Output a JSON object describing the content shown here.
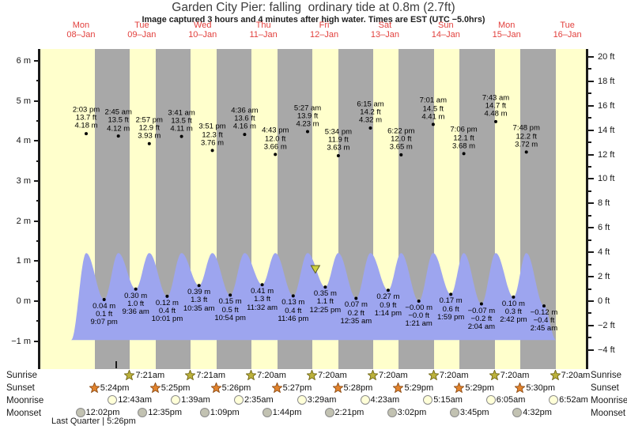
{
  "title": "Garden City Pier: falling  ordinary tide at 0.8m (2.7ft)",
  "subtitle": "Image captured 3 hours and 4 minutes after high water. Times are EST (UTC −5.0hrs)",
  "chart_data": {
    "type": "area",
    "title": "Garden City Pier: falling ordinary tide at 0.8m (2.7ft)",
    "x_axis": {
      "days": [
        {
          "name": "Mon",
          "date": "08–Jan"
        },
        {
          "name": "Tue",
          "date": "09–Jan"
        },
        {
          "name": "Wed",
          "date": "10–Jan"
        },
        {
          "name": "Thu",
          "date": "11–Jan"
        },
        {
          "name": "Fri",
          "date": "12–Jan"
        },
        {
          "name": "Sat",
          "date": "13–Jan"
        },
        {
          "name": "Sun",
          "date": "14–Jan"
        },
        {
          "name": "Mon",
          "date": "15–Jan"
        },
        {
          "name": "Tue",
          "date": "16–Jan"
        }
      ]
    },
    "y_axis_left": {
      "unit": "m",
      "major_ticks": [
        6,
        5,
        4,
        3,
        2,
        1,
        0,
        -1
      ],
      "minor_ticks": [
        5.5,
        4.5,
        3.5,
        2.5,
        1.5,
        0.5,
        -0.5
      ],
      "range": [
        -1.7,
        6.3
      ]
    },
    "y_axis_right": {
      "unit": "ft",
      "major_ticks": [
        20,
        18,
        16,
        14,
        12,
        10,
        8,
        6,
        4,
        2,
        0,
        -2,
        -4
      ],
      "minor_ticks": [
        19,
        17,
        15,
        13,
        11,
        9,
        7,
        5,
        3,
        1,
        -1,
        -3
      ]
    },
    "tide_events": [
      {
        "type": "high",
        "time": "2:03 pm",
        "ft": "13.7 ft",
        "m": "4.18 m",
        "t": 14.05,
        "height_m": 4.18
      },
      {
        "type": "low",
        "time": "9:07 pm",
        "ft": "0.1 ft",
        "m": "0.04 m",
        "t": 21.117,
        "height_m": 0.04
      },
      {
        "type": "high",
        "time": "2:45 am",
        "ft": "13.5 ft",
        "m": "4.12 m",
        "t": 26.75,
        "height_m": 4.12
      },
      {
        "type": "low",
        "time": "9:36 am",
        "ft": "1.0 ft",
        "m": "0.30 m",
        "t": 33.6,
        "height_m": 0.3
      },
      {
        "type": "high",
        "time": "2:57 pm",
        "ft": "12.9 ft",
        "m": "3.93 m",
        "t": 38.95,
        "height_m": 3.93
      },
      {
        "type": "low",
        "time": "10:01 pm",
        "ft": "0.4 ft",
        "m": "0.12 m",
        "t": 46.017,
        "height_m": 0.12
      },
      {
        "type": "high",
        "time": "3:41 am",
        "ft": "13.5 ft",
        "m": "4.11 m",
        "t": 51.683,
        "height_m": 4.11
      },
      {
        "type": "low",
        "time": "10:35 am",
        "ft": "1.3 ft",
        "m": "0.39 m",
        "t": 58.583,
        "height_m": 0.39
      },
      {
        "type": "high",
        "time": "3:51 pm",
        "ft": "12.3 ft",
        "m": "3.76 m",
        "t": 63.85,
        "height_m": 3.76
      },
      {
        "type": "low",
        "time": "10:54 pm",
        "ft": "0.5 ft",
        "m": "0.15 m",
        "t": 70.9,
        "height_m": 0.15
      },
      {
        "type": "high",
        "time": "4:36 am",
        "ft": "13.6 ft",
        "m": "4.16 m",
        "t": 76.6,
        "height_m": 4.16
      },
      {
        "type": "low",
        "time": "11:32 am",
        "ft": "1.3 ft",
        "m": "0.41 m",
        "t": 83.533,
        "height_m": 0.41
      },
      {
        "type": "high",
        "time": "4:43 pm",
        "ft": "12.0 ft",
        "m": "3.66 m",
        "t": 88.717,
        "height_m": 3.66
      },
      {
        "type": "low",
        "time": "11:46 pm",
        "ft": "0.4 ft",
        "m": "0.13 m",
        "t": 95.767,
        "height_m": 0.13
      },
      {
        "type": "high",
        "time": "5:27 am",
        "ft": "13.9 ft",
        "m": "4.23 m",
        "t": 101.45,
        "height_m": 4.23
      },
      {
        "type": "low",
        "time": "12:25 pm",
        "ft": "1.1 ft",
        "m": "0.35 m",
        "t": 108.417,
        "height_m": 0.35
      },
      {
        "type": "high",
        "time": "5:34 pm",
        "ft": "11.9 ft",
        "m": "3.63 m",
        "t": 113.567,
        "height_m": 3.63
      },
      {
        "type": "low",
        "time": "12:35 am",
        "ft": "0.2 ft",
        "m": "0.07 m",
        "t": 120.583,
        "height_m": 0.07
      },
      {
        "type": "high",
        "time": "6:15 am",
        "ft": "14.2 ft",
        "m": "4.32 m",
        "t": 126.25,
        "height_m": 4.32
      },
      {
        "type": "low",
        "time": "1:14 pm",
        "ft": "0.9 ft",
        "m": "0.27 m",
        "t": 133.233,
        "height_m": 0.27
      },
      {
        "type": "high",
        "time": "6:22 pm",
        "ft": "12.0 ft",
        "m": "3.65 m",
        "t": 138.367,
        "height_m": 3.65
      },
      {
        "type": "low",
        "time": "1:21 am",
        "ft": "−0.0 ft",
        "m": "−0.00 m",
        "t": 145.35,
        "height_m": 0.0
      },
      {
        "type": "high",
        "time": "7:01 am",
        "ft": "14.5 ft",
        "m": "4.41 m",
        "t": 151.017,
        "height_m": 4.41
      },
      {
        "type": "low",
        "time": "1:59 pm",
        "ft": "0.6 ft",
        "m": "0.17 m",
        "t": 157.983,
        "height_m": 0.17
      },
      {
        "type": "high",
        "time": "7:06 pm",
        "ft": "12.1 ft",
        "m": "3.68 m",
        "t": 163.1,
        "height_m": 3.68
      },
      {
        "type": "low",
        "time": "2:04 am",
        "ft": "−0.2 ft",
        "m": "−0.07 m",
        "t": 170.067,
        "height_m": -0.07
      },
      {
        "type": "high",
        "time": "7:43 am",
        "ft": "14.7 ft",
        "m": "4.48 m",
        "t": 175.717,
        "height_m": 4.48
      },
      {
        "type": "low",
        "time": "2:42 pm",
        "ft": "0.3 ft",
        "m": "0.10 m",
        "t": 182.7,
        "height_m": 0.1
      },
      {
        "type": "high",
        "time": "7:48 pm",
        "ft": "12.2 ft",
        "m": "3.72 m",
        "t": 187.8,
        "height_m": 3.72
      },
      {
        "type": "low",
        "time": "2:45 am",
        "ft": "−0.4 ft",
        "m": "−0.12 m",
        "t": 194.75,
        "height_m": -0.12
      }
    ],
    "current_tide_marker": {
      "height_m": 0.8,
      "t": 104.52
    },
    "astro": [
      {
        "id": "sunrise",
        "label": "Sunrise",
        "icon": "sunrise-star-icon",
        "events": [
          {
            "t": 31.35,
            "time": "7:21am"
          },
          {
            "t": 55.35,
            "time": "7:21am"
          },
          {
            "t": 79.333,
            "time": "7:20am"
          },
          {
            "t": 103.333,
            "time": "7:20am"
          },
          {
            "t": 127.333,
            "time": "7:20am"
          },
          {
            "t": 151.333,
            "time": "7:20am"
          },
          {
            "t": 175.333,
            "time": "7:20am"
          },
          {
            "t": 199.333,
            "time": "7:20am"
          }
        ]
      },
      {
        "id": "sunset",
        "label": "Sunset",
        "icon": "sunset-star-icon",
        "events": [
          {
            "t": 17.4,
            "time": "5:24pm"
          },
          {
            "t": 41.417,
            "time": "5:25pm"
          },
          {
            "t": 65.433,
            "time": "5:26pm"
          },
          {
            "t": 89.45,
            "time": "5:27pm"
          },
          {
            "t": 113.467,
            "time": "5:28pm"
          },
          {
            "t": 137.483,
            "time": "5:29pm"
          },
          {
            "t": 161.483,
            "time": "5:29pm"
          },
          {
            "t": 185.5,
            "time": "5:30pm"
          }
        ]
      },
      {
        "id": "moonrise",
        "label": "Moonrise",
        "icon": "moonrise-circle-icon",
        "events": [
          {
            "t": 24.717,
            "time": "12:43am"
          },
          {
            "t": 49.65,
            "time": "1:39am"
          },
          {
            "t": 74.583,
            "time": "2:35am"
          },
          {
            "t": 99.483,
            "time": "3:29am"
          },
          {
            "t": 124.383,
            "time": "4:23am"
          },
          {
            "t": 149.25,
            "time": "5:15am"
          },
          {
            "t": 174.083,
            "time": "6:05am"
          },
          {
            "t": 198.867,
            "time": "6:52am"
          }
        ]
      },
      {
        "id": "moonset",
        "label": "Moonset",
        "icon": "moonset-circle-icon",
        "events": [
          {
            "t": 12.033,
            "time": "12:02pm"
          },
          {
            "t": 36.583,
            "time": "12:35pm"
          },
          {
            "t": 61.15,
            "time": "1:09pm"
          },
          {
            "t": 85.733,
            "time": "1:44pm"
          },
          {
            "t": 110.35,
            "time": "2:21pm"
          },
          {
            "t": 135.033,
            "time": "3:02pm"
          },
          {
            "t": 159.75,
            "time": "3:45pm"
          },
          {
            "t": 184.533,
            "time": "4:32pm"
          }
        ]
      }
    ],
    "moon_phase": "Last Quarter | 5:26pm",
    "colors": {
      "day_band": "#ffffcc",
      "night_band": "#a8a8a8",
      "tide_fill": "#9da5ef",
      "date_text": "#e2403d",
      "marker_fill": "#cdd13f",
      "marker_stroke": "#5f5f20",
      "sunrise_star": "#bcb23c",
      "sunset_star": "#e2832d",
      "moonrise_fill": "#ffffd8",
      "moonset_fill": "#c2c2b2"
    }
  }
}
